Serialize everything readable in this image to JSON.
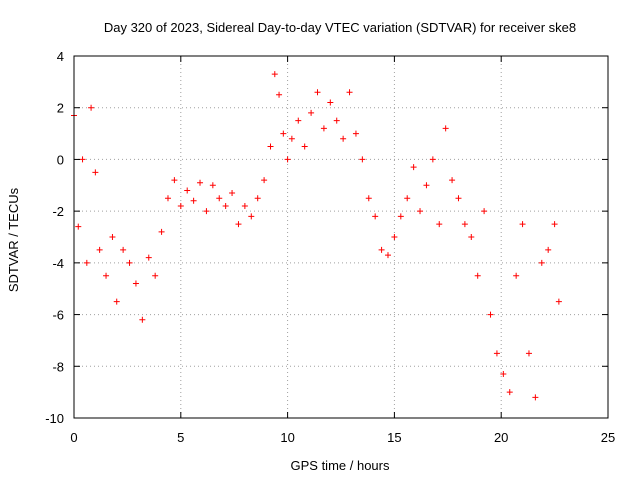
{
  "chart_data": {
    "type": "scatter",
    "title": "Day 320 of 2023, Sidereal Day-to-day VTEC variation (SDTVAR) for receiver ske8",
    "xlabel": "GPS time / hours",
    "ylabel": "SDTVAR / TECUs",
    "xlim": [
      0,
      25
    ],
    "ylim": [
      -10,
      4
    ],
    "xticks": [
      0,
      5,
      10,
      15,
      20,
      25
    ],
    "yticks": [
      -10,
      -8,
      -6,
      -4,
      -2,
      0,
      2,
      4
    ],
    "grid": true,
    "marker": "+",
    "color": "#ff0000",
    "series": [
      {
        "name": "SDTVAR",
        "x": [
          0.0,
          0.2,
          0.4,
          0.6,
          0.8,
          1.0,
          1.2,
          1.5,
          1.8,
          2.0,
          2.3,
          2.6,
          2.9,
          3.2,
          3.5,
          3.8,
          4.1,
          4.4,
          4.7,
          5.0,
          5.3,
          5.6,
          5.9,
          6.2,
          6.5,
          6.8,
          7.1,
          7.4,
          7.7,
          8.0,
          8.3,
          8.6,
          8.9,
          9.2,
          9.4,
          9.6,
          9.8,
          10.0,
          10.2,
          10.5,
          10.8,
          11.1,
          11.4,
          11.7,
          12.0,
          12.3,
          12.6,
          12.9,
          13.2,
          13.5,
          13.8,
          14.1,
          14.4,
          14.7,
          15.0,
          15.3,
          15.6,
          15.9,
          16.2,
          16.5,
          16.8,
          17.1,
          17.4,
          17.7,
          18.0,
          18.3,
          18.6,
          18.9,
          19.2,
          19.5,
          19.8,
          20.1,
          20.4,
          20.7,
          21.0,
          21.3,
          21.6,
          21.9,
          22.2,
          22.5,
          22.7
        ],
        "y": [
          1.7,
          -2.6,
          0.0,
          -4.0,
          2.0,
          -0.5,
          -3.5,
          -4.5,
          -3.0,
          -5.5,
          -3.5,
          -4.0,
          -4.8,
          -6.2,
          -3.8,
          -4.5,
          -2.8,
          -1.5,
          -0.8,
          -1.8,
          -1.2,
          -1.6,
          -0.9,
          -2.0,
          -1.0,
          -1.5,
          -1.8,
          -1.3,
          -2.5,
          -1.8,
          -2.2,
          -1.5,
          -0.8,
          0.5,
          3.3,
          2.5,
          1.0,
          0.0,
          0.8,
          1.5,
          0.5,
          1.8,
          2.6,
          1.2,
          2.2,
          1.5,
          0.8,
          2.6,
          1.0,
          0.0,
          -1.5,
          -2.2,
          -3.5,
          -3.7,
          -3.0,
          -2.2,
          -1.5,
          -0.3,
          -2.0,
          -1.0,
          0.0,
          -2.5,
          1.2,
          -0.8,
          -1.5,
          -2.5,
          -3.0,
          -4.5,
          -2.0,
          -6.0,
          -7.5,
          -8.3,
          -9.0,
          -4.5,
          -2.5,
          -7.5,
          -9.2,
          -4.0,
          -3.5,
          -2.5,
          -5.5
        ]
      }
    ]
  }
}
